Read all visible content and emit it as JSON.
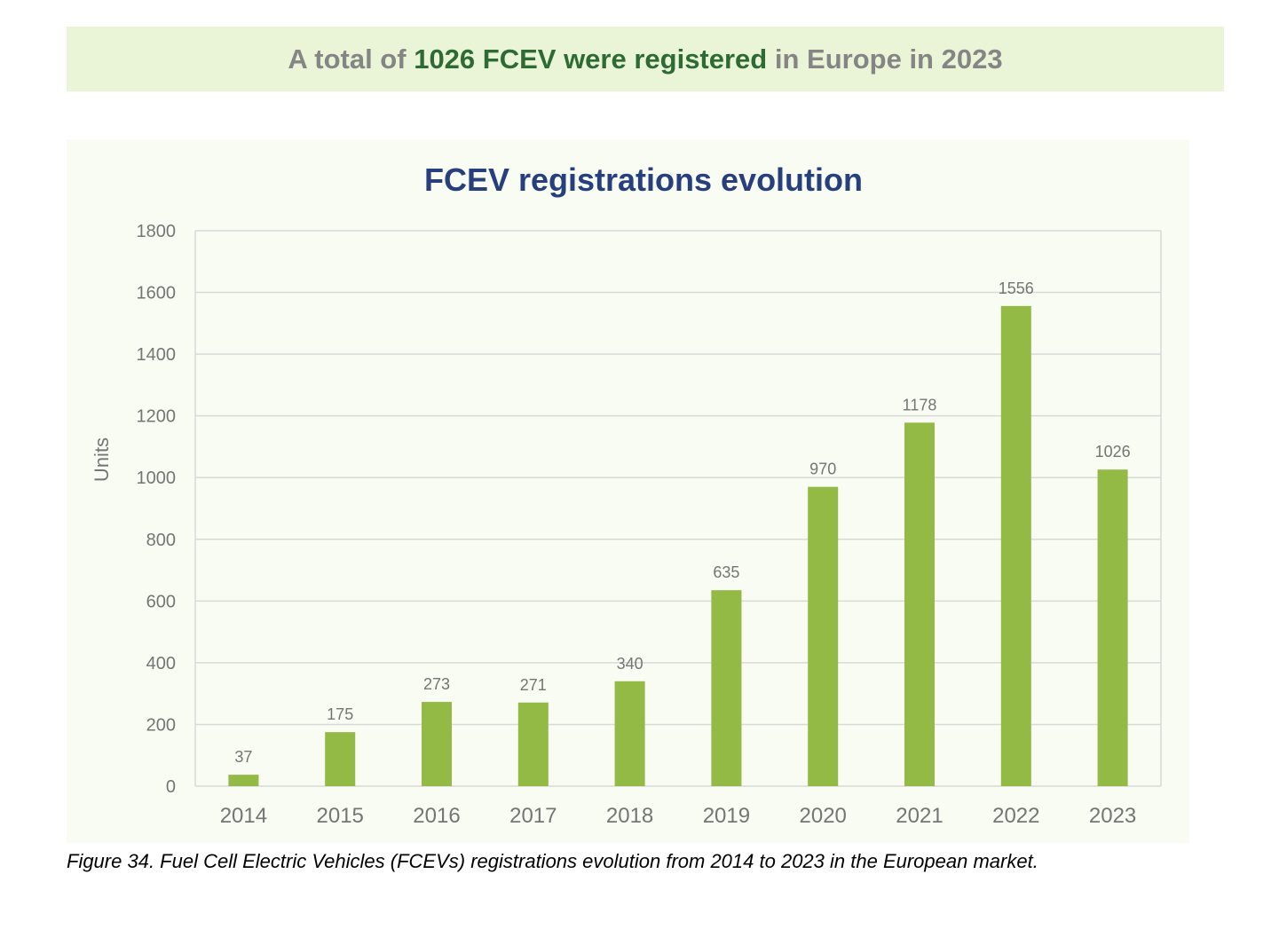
{
  "banner": {
    "pre": "A total of",
    "highlight": "1026 FCEV were registered",
    "post": "in Europe in 2023"
  },
  "caption": "Figure 34. Fuel Cell Electric Vehicles (FCEVs) registrations evolution from 2014 to 2023 in the European market.",
  "colors": {
    "bar": "#93ba45",
    "title": "#283f7d",
    "highlight": "#2e6b34",
    "banner_text": "#858585",
    "grid": "#d9d9d9",
    "tick_text": "#757575"
  },
  "chart_data": {
    "type": "bar",
    "title": "FCEV registrations evolution",
    "xlabel": "",
    "ylabel": "Units",
    "categories": [
      "2014",
      "2015",
      "2016",
      "2017",
      "2018",
      "2019",
      "2020",
      "2021",
      "2022",
      "2023"
    ],
    "values": [
      37,
      175,
      273,
      271,
      340,
      635,
      970,
      1178,
      1556,
      1026
    ],
    "ylim": [
      0,
      1800
    ],
    "yticks": [
      0,
      200,
      400,
      600,
      800,
      1000,
      1200,
      1400,
      1600,
      1800
    ],
    "grid": true,
    "data_labels": true
  }
}
